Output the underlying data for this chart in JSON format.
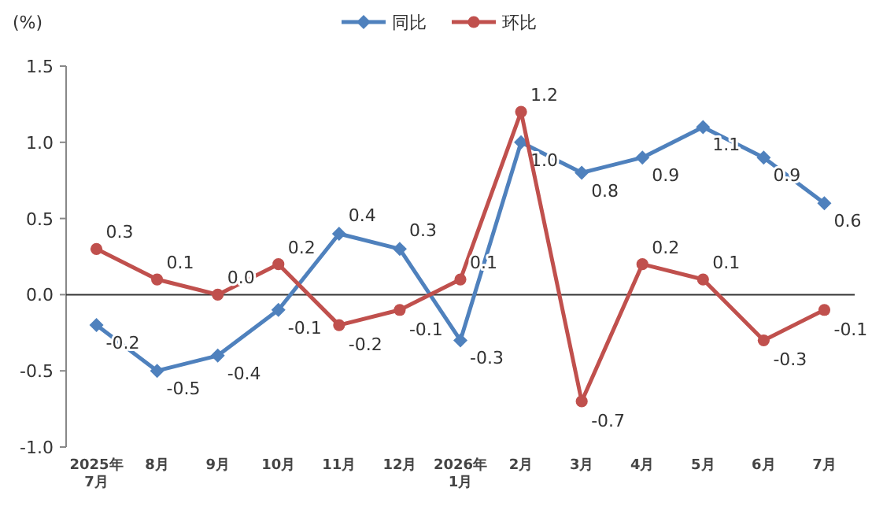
{
  "chart_data": {
    "type": "line",
    "ylabel": "(%)",
    "categories": [
      "2025年\n7月",
      "8月",
      "9月",
      "10月",
      "11月",
      "12月",
      "2026年\n1月",
      "2月",
      "3月",
      "4月",
      "5月",
      "6月",
      "7月"
    ],
    "series": [
      {
        "name": "同比",
        "color": "#4f81bd",
        "marker": "diamond",
        "values": [
          -0.2,
          -0.5,
          -0.4,
          -0.1,
          0.4,
          0.3,
          -0.3,
          1.0,
          0.8,
          0.9,
          1.1,
          0.9,
          0.6
        ],
        "value_labels": [
          "-0.2",
          "-0.5",
          "-0.4",
          "-0.1",
          "0.4",
          "0.3",
          "-0.3",
          "1.0",
          "0.8",
          "0.9",
          "1.1",
          "0.9",
          "0.6"
        ]
      },
      {
        "name": "环比",
        "color": "#c0504d",
        "marker": "circle",
        "values": [
          0.3,
          0.1,
          0.0,
          0.2,
          -0.2,
          -0.1,
          0.1,
          1.2,
          -0.7,
          0.2,
          0.1,
          -0.3,
          -0.1
        ],
        "value_labels": [
          "0.3",
          "0.1",
          "0.0",
          "0.2",
          "-0.2",
          "-0.1",
          "0.1",
          "1.2",
          "-0.7",
          "0.2",
          "0.1",
          "-0.3",
          "-0.1"
        ]
      }
    ],
    "ylim": [
      -1.0,
      1.5
    ],
    "yticks": [
      1.5,
      {
        "value": 1.0,
        "label": "1.0"
      },
      0.5,
      {
        "value": 0,
        "label": "0.0"
      },
      -0.5,
      {
        "value": -1.0,
        "label": "-1.0"
      }
    ],
    "ref_lines": [
      {
        "axis": "y",
        "value": 0,
        "color": "#333333"
      }
    ],
    "legend": "top",
    "grid": false
  }
}
